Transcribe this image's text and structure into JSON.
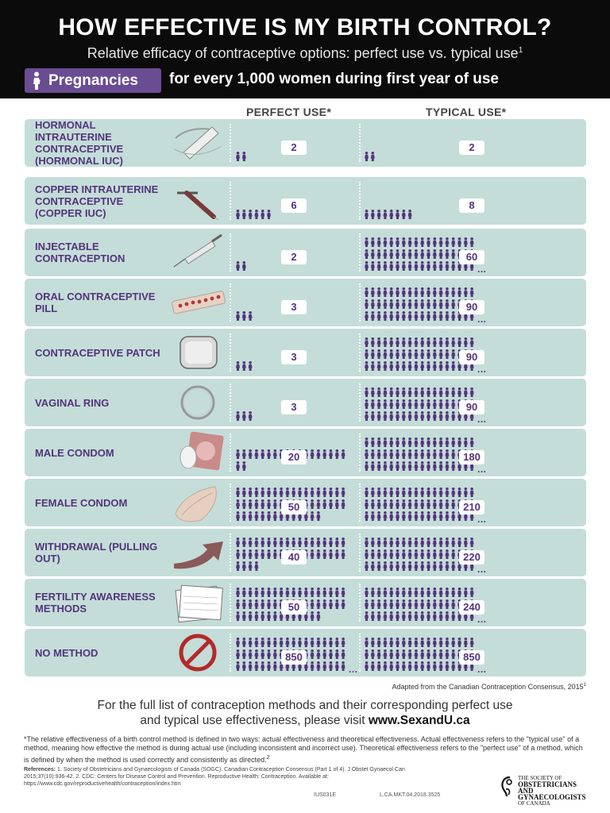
{
  "header": {
    "title": "HOW EFFECTIVE IS MY BIRTH CONTROL?",
    "subtitle": "Relative efficacy of contraceptive options: perfect use vs. typical use",
    "subtitle_sup": "1",
    "pill_label": "Pregnancies",
    "pill_rest": "for every 1,000 women during first year of use"
  },
  "columns": {
    "perfect": "PERFECT USE*",
    "typical": "TYPICAL USE*"
  },
  "methods": [
    {
      "name": "HORMONAL INTRAUTERINE CONTRACEPTIVE (HORMONAL IUC)",
      "icon": "hormonal-iud-icon",
      "perfect": "2",
      "typical": "2"
    },
    {
      "name": "COPPER INTRAUTERINE CONTRACEPTIVE (COPPER IUC)",
      "icon": "copper-iud-icon",
      "perfect": "6",
      "typical": "8"
    },
    {
      "name": "INJECTABLE CONTRACEPTION",
      "icon": "syringe-icon",
      "perfect": "2",
      "typical": "60"
    },
    {
      "name": "ORAL CONTRACEPTIVE PILL",
      "icon": "pill-pack-icon",
      "perfect": "3",
      "typical": "90"
    },
    {
      "name": "CONTRACEPTIVE PATCH",
      "icon": "patch-icon",
      "perfect": "3",
      "typical": "90"
    },
    {
      "name": "VAGINAL RING",
      "icon": "ring-icon",
      "perfect": "3",
      "typical": "90"
    },
    {
      "name": "MALE CONDOM",
      "icon": "male-condom-icon",
      "perfect": "20",
      "typical": "180"
    },
    {
      "name": "FEMALE CONDOM",
      "icon": "female-condom-icon",
      "perfect": "50",
      "typical": "210"
    },
    {
      "name": "WITHDRAWAL (PULLING OUT)",
      "icon": "arrow-icon",
      "perfect": "40",
      "typical": "220"
    },
    {
      "name": "FERTILITY AWARENESS METHODS",
      "icon": "calendar-icon",
      "perfect": "50",
      "typical": "240"
    },
    {
      "name": "NO METHOD",
      "icon": "no-symbol-icon",
      "perfect": "850",
      "typical": "850"
    }
  ],
  "colors": {
    "accent": "#6a4c93",
    "row_bg": "#c4ddd8",
    "text_purple": "#54347c"
  },
  "ellipsis": "...",
  "adapted": "Adapted from the Canadian Contraception Consensus, 2015",
  "adapted_sup": "1",
  "visit": {
    "line1": "For the full list of contraception methods and their corresponding perfect use",
    "line2": "and typical use effectiveness, please visit",
    "url": "www.SexandU.ca"
  },
  "footnote": "*The relative effectiveness of a birth control method is defined in two ways: actual effectiveness and theoretical effectiveness. Actual effectiveness refers to the \"typical use\" of a method, meaning how effective the method is during actual use (including inconsistent and incorrect use). Theoretical effectiveness refers to the \"perfect use\" of a method, which is defined by when the method is used correctly and consistently as directed.",
  "footnote_sup": "2",
  "references": {
    "label": "References:",
    "text": "1. Society of Obstetricians and Gynaecologists of Canada (SOGC). Canadian Contraception Consensus (Part 1 of 4). J Obstet Gynaecol Can 2015;37(10):936-42. 2. CDC: Centers for Disease Control and Prevention. Reproductive Health: Contraception. Available at: https://www.cdc.gov/reproductivehealth/contraception/index.htm"
  },
  "codes": {
    "left": "IUS031E",
    "right": "L.CA.MKT.04.2018.3525"
  },
  "logo": {
    "line1": "THE SOCIETY OF",
    "line2": "OBSTETRICIANS AND",
    "line3": "GYNAECOLOGISTS",
    "line4": "OF CANADA"
  }
}
